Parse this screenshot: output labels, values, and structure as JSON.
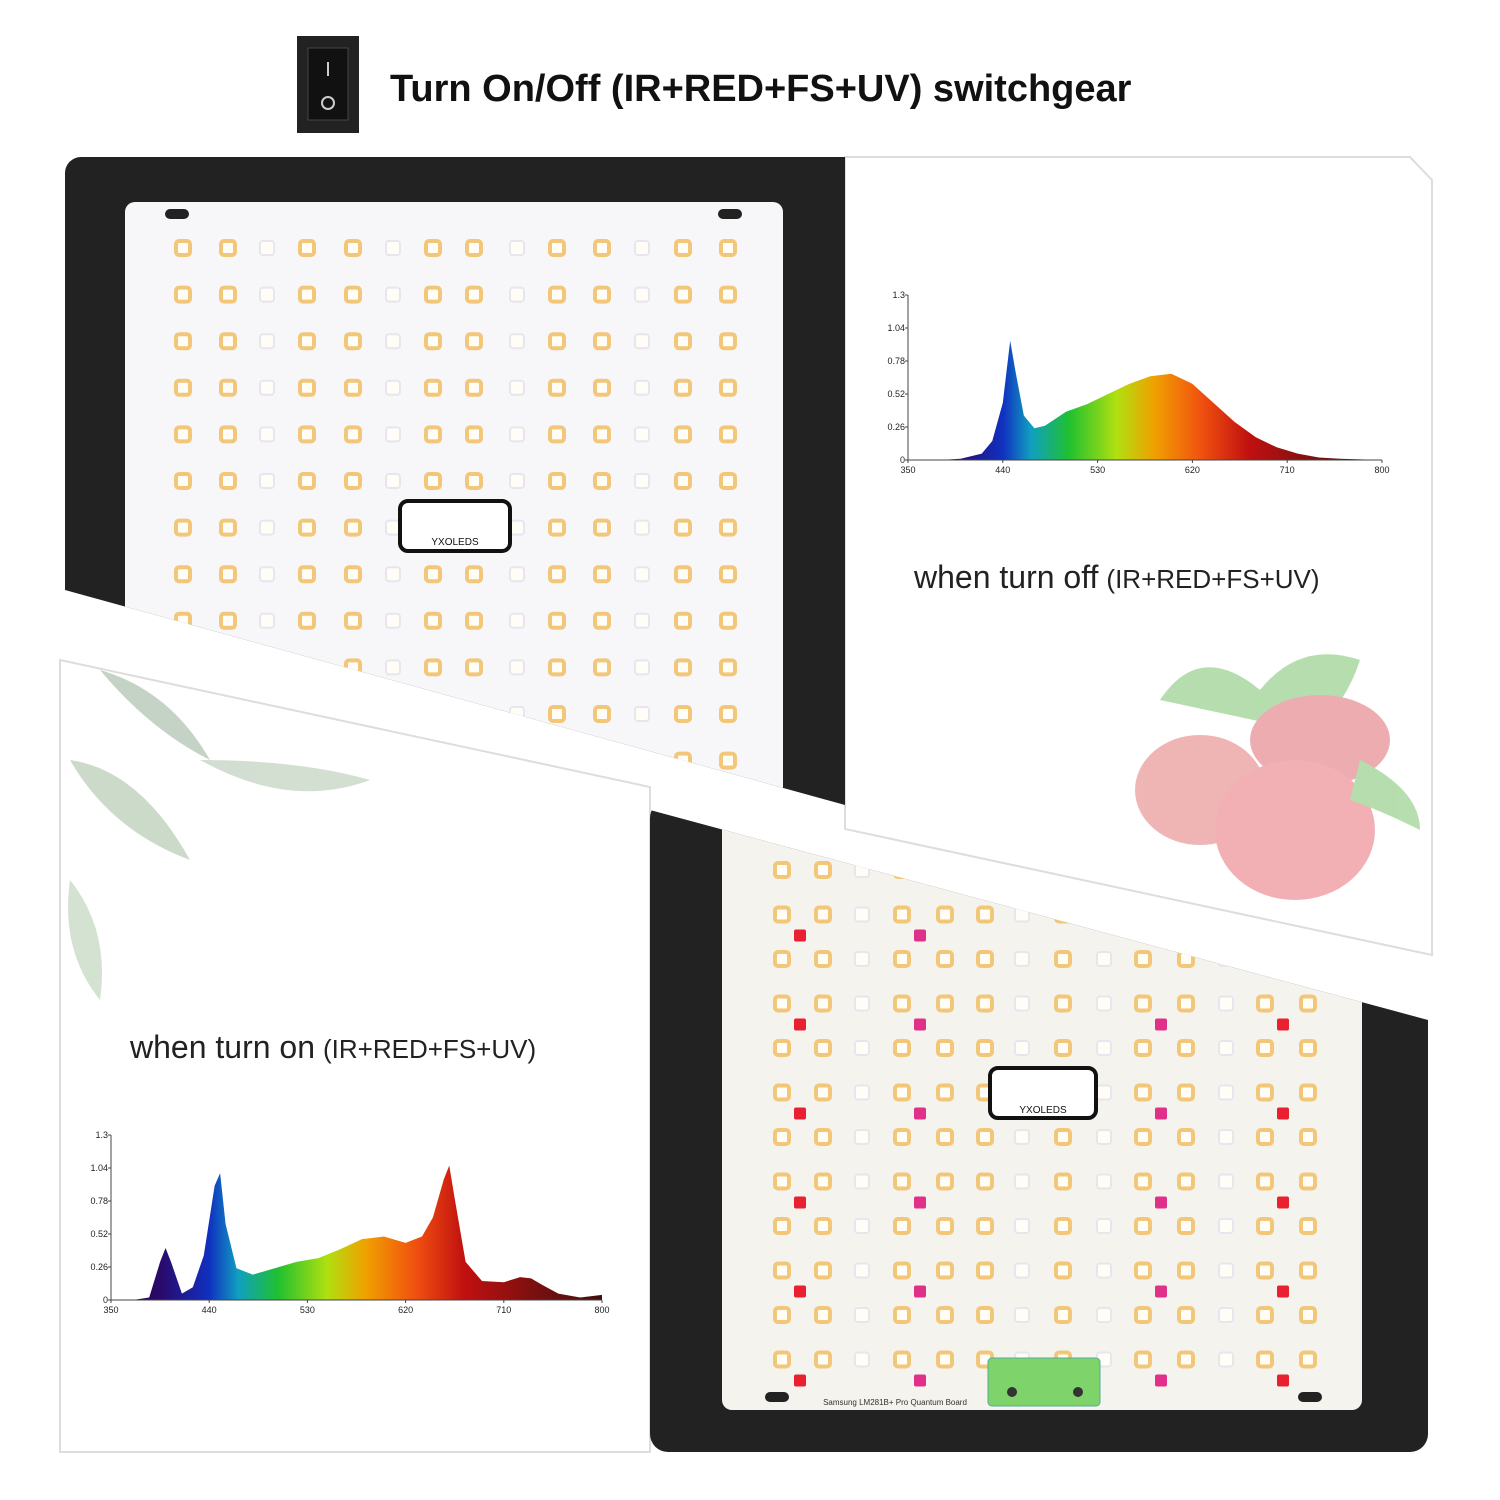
{
  "header": {
    "title": "Turn On/Off (IR+RED+FS+UV) switchgear"
  },
  "captions": {
    "off": {
      "text": "when turn off",
      "detail": "(IR+RED+FS+UV)"
    },
    "on": {
      "text": "when turn on",
      "detail": "(IR+RED+FS+UV)"
    }
  },
  "boards": {
    "brand": "YXOLEDS",
    "model": "Samsung LM281B+ Pro Quantum Board"
  },
  "chart_data": [
    {
      "type": "area",
      "x": [
        350,
        380,
        400,
        420,
        430,
        440,
        447,
        452,
        460,
        470,
        480,
        500,
        520,
        540,
        560,
        580,
        600,
        620,
        640,
        660,
        680,
        700,
        720,
        740,
        760,
        780,
        800
      ],
      "values": [
        0,
        0,
        0.01,
        0.05,
        0.15,
        0.45,
        0.94,
        0.7,
        0.35,
        0.25,
        0.27,
        0.38,
        0.44,
        0.52,
        0.6,
        0.66,
        0.68,
        0.6,
        0.45,
        0.3,
        0.18,
        0.1,
        0.05,
        0.02,
        0.01,
        0.005,
        0
      ],
      "xlim": [
        350,
        800
      ],
      "ylim": [
        0,
        1.3
      ],
      "xticks": [
        350,
        440,
        530,
        620,
        710,
        800
      ],
      "yticks": [
        0,
        0.26,
        0.52,
        0.78,
        1.04,
        1.3
      ]
    },
    {
      "type": "area",
      "x": [
        350,
        370,
        385,
        395,
        400,
        405,
        415,
        425,
        435,
        445,
        450,
        455,
        465,
        480,
        500,
        520,
        540,
        560,
        580,
        600,
        620,
        635,
        645,
        655,
        660,
        665,
        675,
        690,
        710,
        725,
        735,
        745,
        760,
        780,
        800
      ],
      "values": [
        0,
        0,
        0.02,
        0.3,
        0.41,
        0.3,
        0.05,
        0.1,
        0.35,
        0.9,
        1.0,
        0.6,
        0.25,
        0.2,
        0.25,
        0.3,
        0.33,
        0.4,
        0.48,
        0.5,
        0.45,
        0.5,
        0.65,
        0.95,
        1.06,
        0.8,
        0.3,
        0.15,
        0.14,
        0.18,
        0.17,
        0.12,
        0.05,
        0.02,
        0.04
      ],
      "xlim": [
        350,
        800
      ],
      "ylim": [
        0,
        1.3
      ],
      "xticks": [
        350,
        440,
        530,
        620,
        710,
        800
      ],
      "yticks": [
        0,
        0.26,
        0.52,
        0.78,
        1.04,
        1.3
      ]
    }
  ]
}
